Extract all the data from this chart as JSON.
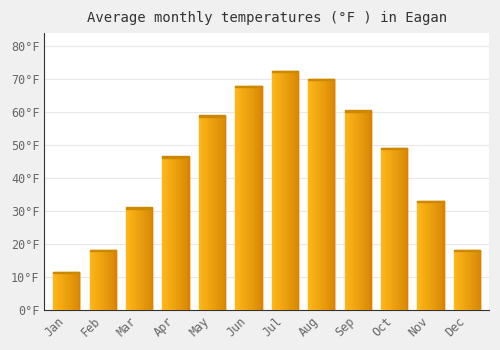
{
  "title": "Average monthly temperatures (°F ) in Eagan",
  "months": [
    "Jan",
    "Feb",
    "Mar",
    "Apr",
    "May",
    "Jun",
    "Jul",
    "Aug",
    "Sep",
    "Oct",
    "Nov",
    "Dec"
  ],
  "values": [
    11.5,
    18,
    31,
    46.5,
    59,
    68,
    72.5,
    70,
    60.5,
    49,
    33,
    18
  ],
  "bar_color_light": "#FFD966",
  "bar_color_main": "#FFAA00",
  "bar_color_dark": "#E08000",
  "background_color": "#F0F0F0",
  "plot_bg_color": "#FFFFFF",
  "grid_color": "#E8E8E8",
  "tick_label_color": "#666666",
  "title_color": "#333333",
  "spine_color": "#333333",
  "ylim": [
    0,
    84
  ],
  "yticks": [
    0,
    10,
    20,
    30,
    40,
    50,
    60,
    70,
    80
  ],
  "title_fontsize": 10,
  "tick_fontsize": 8.5,
  "bar_width": 0.72
}
